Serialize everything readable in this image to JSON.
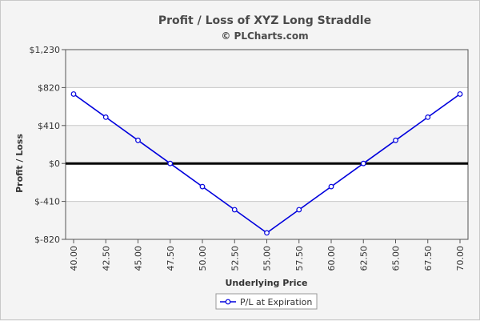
{
  "chart_data": {
    "type": "line",
    "title": "Profit / Loss of XYZ Long Straddle",
    "subtitle": "© PLCharts.com",
    "xlabel": "Underlying Price",
    "ylabel": "Profit / Loss",
    "x": [
      "40.00",
      "42.50",
      "45.00",
      "47.50",
      "50.00",
      "52.50",
      "55.00",
      "57.50",
      "60.00",
      "62.50",
      "65.00",
      "67.50",
      "70.00"
    ],
    "y_ticks": [
      "$1,230",
      "$820",
      "$410",
      "$0",
      "$-410",
      "$-820"
    ],
    "ylim": [
      -820,
      1230
    ],
    "grid": true,
    "series": [
      {
        "name": "P/L at Expiration",
        "color": "#0000dd",
        "values": [
          750,
          500,
          250,
          0,
          -250,
          -500,
          -750,
          -500,
          -250,
          0,
          250,
          500,
          750
        ]
      }
    ],
    "legend": "bottom-center"
  }
}
